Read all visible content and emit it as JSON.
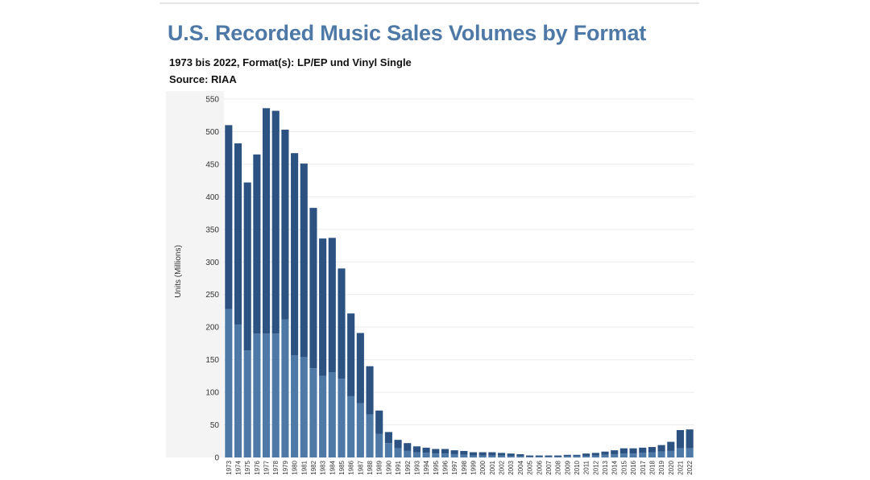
{
  "page": {
    "title": "U.S. Recorded Music Sales Volumes by Format",
    "subtitle": "1973 bis 2022, Format(s): LP/EP und Vinyl Single",
    "source": "Source: RIAA"
  },
  "chart_data": {
    "type": "bar",
    "stacked": true,
    "ylabel": "Units (Millions)",
    "ylim": [
      0,
      550
    ],
    "yticks": [
      0,
      50,
      100,
      150,
      200,
      250,
      300,
      350,
      400,
      450,
      500,
      550
    ],
    "grid": true,
    "categories": [
      "1973",
      "1974",
      "1975",
      "1976",
      "1977",
      "1978",
      "1979",
      "1980",
      "1981",
      "1982",
      "1983",
      "1984",
      "1985",
      "1986",
      "1987",
      "1988",
      "1989",
      "1990",
      "1991",
      "1992",
      "1993",
      "1994",
      "1995",
      "1996",
      "1997",
      "1998",
      "1999",
      "2000",
      "2001",
      "2002",
      "2003",
      "2004",
      "2005",
      "2006",
      "2007",
      "2008",
      "2009",
      "2010",
      "2011",
      "2012",
      "2013",
      "2014",
      "2015",
      "2016",
      "2017",
      "2018",
      "2019",
      "2020",
      "2021",
      "2022"
    ],
    "series": [
      {
        "color": "#4e79a7",
        "values": [
          228,
          204,
          164,
          190,
          190,
          190,
          212,
          157,
          154,
          137,
          125,
          131,
          121,
          94,
          83,
          66,
          36,
          22,
          14,
          10,
          8,
          7,
          6,
          6,
          5,
          4,
          3,
          3,
          3,
          3,
          2,
          2,
          1,
          1,
          1,
          1,
          2,
          2,
          2,
          3,
          4,
          5,
          6,
          6,
          7,
          8,
          9,
          10,
          14,
          14
        ]
      },
      {
        "color": "#2c5282",
        "values": [
          282,
          278,
          258,
          275,
          346,
          342,
          291,
          310,
          297,
          246,
          211,
          206,
          169,
          127,
          108,
          74,
          36,
          17,
          13,
          12,
          9,
          8,
          7,
          7,
          6,
          6,
          5,
          5,
          5,
          4,
          4,
          3,
          2,
          2,
          2,
          2,
          2,
          2,
          4,
          4,
          5,
          6,
          8,
          8,
          8,
          8,
          10,
          14,
          28,
          29
        ]
      }
    ]
  }
}
